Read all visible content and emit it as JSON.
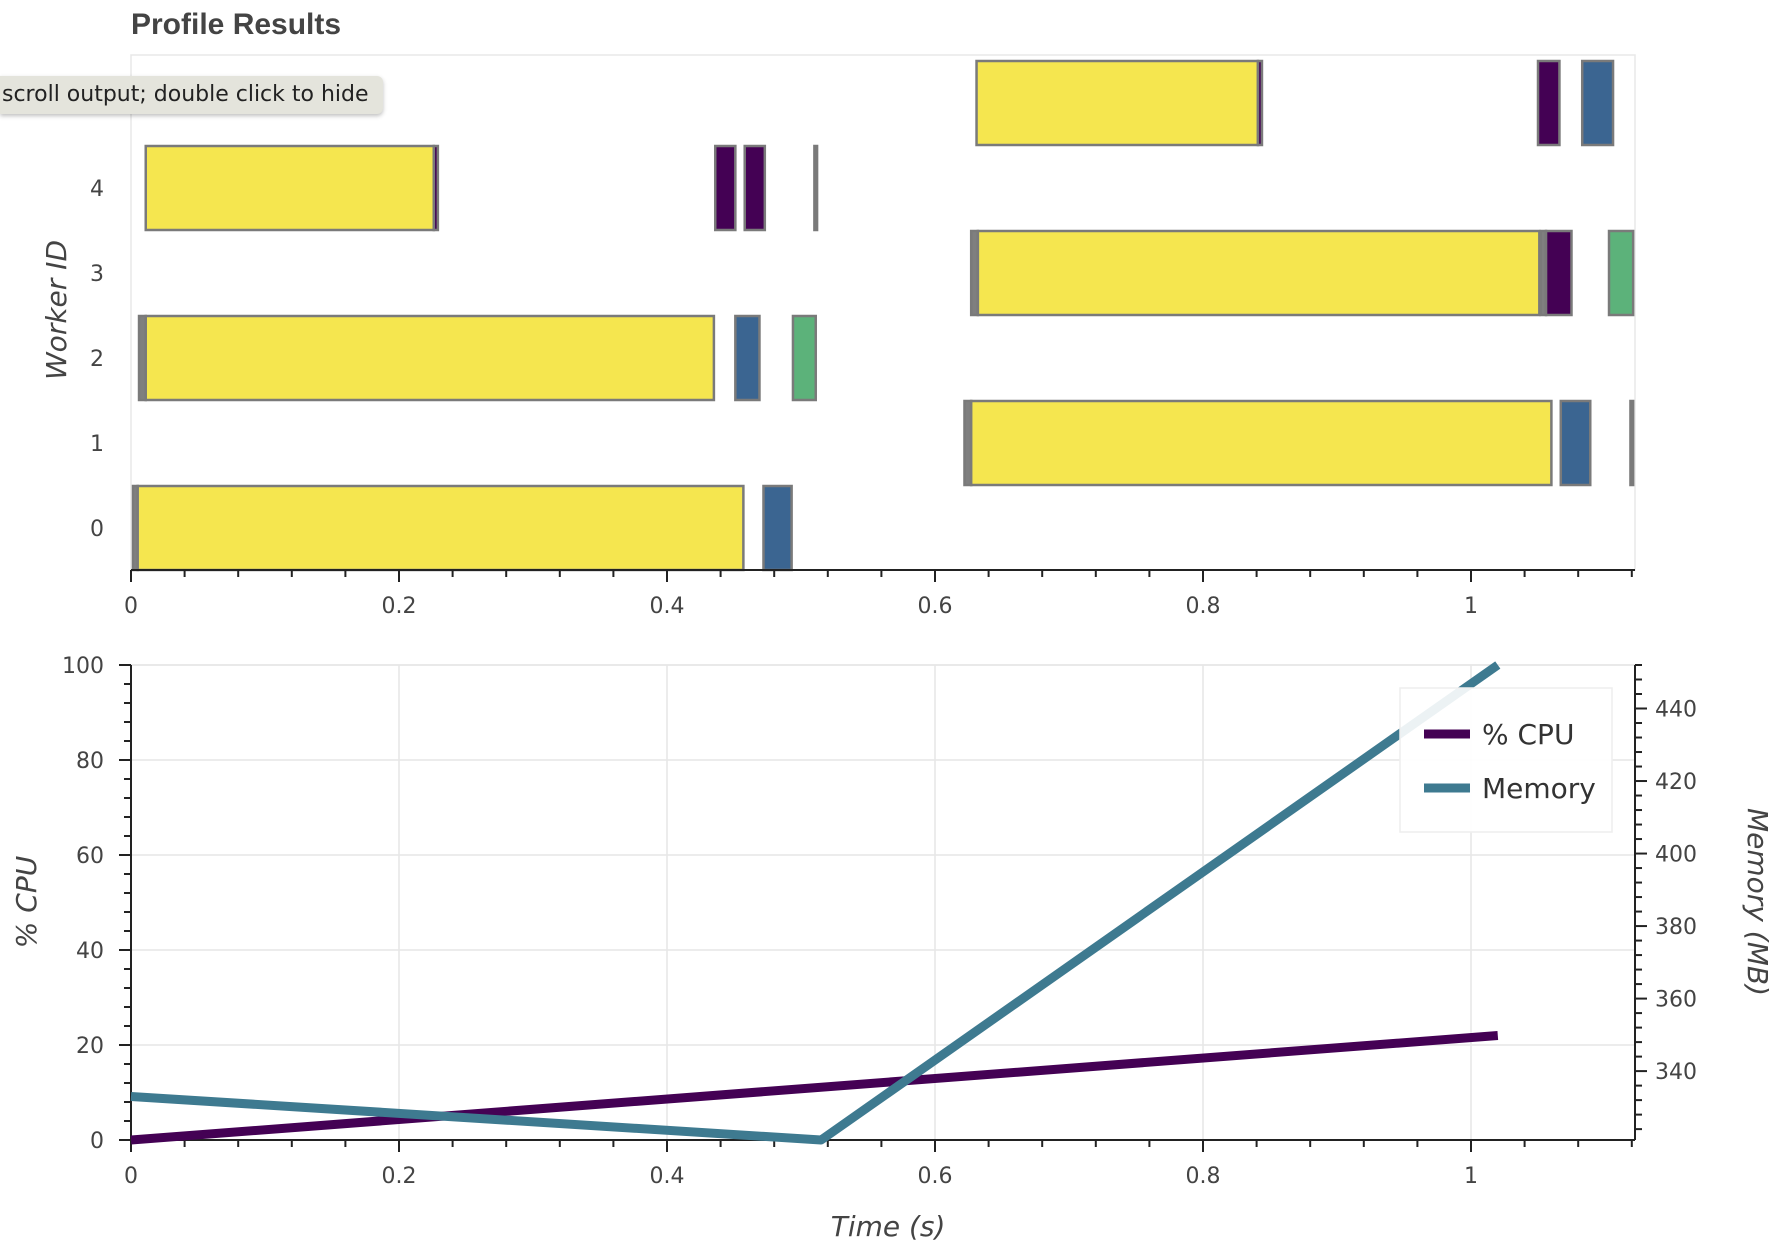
{
  "title": "Profile Results",
  "tooltip": "scroll output; double click to hide",
  "chart_data": [
    {
      "type": "bar",
      "subtype": "gantt",
      "ylabel": "Worker ID",
      "xlabel": "",
      "xlim": [
        0,
        1.12
      ],
      "ylim": [
        -0.5,
        5.5
      ],
      "xticks": [
        "0",
        "0.2",
        "0.4",
        "0.6",
        "0.8",
        "1"
      ],
      "yticks": [
        "0",
        "1",
        "2",
        "3",
        "4"
      ],
      "task_colors": {
        "yellow": "#f5e64f",
        "purple": "#440154",
        "blue": "#3b6591",
        "green": "#5cb27a",
        "gray": "#7f7f7f"
      },
      "tasks": [
        {
          "worker": 0,
          "start": 0.0,
          "end": 0.005,
          "color": "gray"
        },
        {
          "worker": 0,
          "start": 0.005,
          "end": 0.457,
          "color": "yellow"
        },
        {
          "worker": 0,
          "start": 0.472,
          "end": 0.493,
          "color": "blue"
        },
        {
          "worker": 1,
          "start": 0.622,
          "end": 0.627,
          "color": "gray"
        },
        {
          "worker": 1,
          "start": 0.627,
          "end": 1.06,
          "color": "yellow"
        },
        {
          "worker": 1,
          "start": 1.067,
          "end": 1.089,
          "color": "blue"
        },
        {
          "worker": 1,
          "start": 1.119,
          "end": 1.121,
          "color": "gray"
        },
        {
          "worker": 2,
          "start": 0.006,
          "end": 0.011,
          "color": "gray"
        },
        {
          "worker": 2,
          "start": 0.011,
          "end": 0.435,
          "color": "yellow"
        },
        {
          "worker": 2,
          "start": 0.451,
          "end": 0.469,
          "color": "blue"
        },
        {
          "worker": 2,
          "start": 0.494,
          "end": 0.511,
          "color": "green"
        },
        {
          "worker": 3,
          "start": 0.627,
          "end": 0.632,
          "color": "gray"
        },
        {
          "worker": 3,
          "start": 0.632,
          "end": 1.051,
          "color": "yellow"
        },
        {
          "worker": 3,
          "start": 1.052,
          "end": 1.056,
          "color": "gray"
        },
        {
          "worker": 3,
          "start": 1.056,
          "end": 1.075,
          "color": "purple"
        },
        {
          "worker": 3,
          "start": 1.103,
          "end": 1.121,
          "color": "green"
        },
        {
          "worker": 4,
          "start": 0.011,
          "end": 0.226,
          "color": "yellow"
        },
        {
          "worker": 4,
          "start": 0.226,
          "end": 0.229,
          "color": "purple"
        },
        {
          "worker": 4,
          "start": 0.436,
          "end": 0.451,
          "color": "purple"
        },
        {
          "worker": 4,
          "start": 0.458,
          "end": 0.473,
          "color": "purple"
        },
        {
          "worker": 4,
          "start": 0.51,
          "end": 0.512,
          "color": "gray"
        },
        {
          "worker": 5,
          "start": 0.631,
          "end": 0.841,
          "color": "yellow"
        },
        {
          "worker": 5,
          "start": 0.841,
          "end": 0.844,
          "color": "purple"
        },
        {
          "worker": 5,
          "start": 1.05,
          "end": 1.066,
          "color": "purple"
        },
        {
          "worker": 5,
          "start": 1.083,
          "end": 1.106,
          "color": "blue"
        }
      ]
    },
    {
      "type": "line",
      "xlabel": "Time (s)",
      "ylabel": "% CPU",
      "y2label": "Memory (MB)",
      "xlim": [
        0,
        1.12
      ],
      "ylim": [
        0,
        100
      ],
      "y2lim": [
        321,
        452
      ],
      "xticks": [
        "0",
        "0.2",
        "0.4",
        "0.6",
        "0.8",
        "1"
      ],
      "yticks": [
        "0",
        "20",
        "40",
        "60",
        "80",
        "100"
      ],
      "y2ticks": [
        "340",
        "360",
        "380",
        "400",
        "420",
        "440"
      ],
      "grid": true,
      "legend_position": "top-right",
      "series": [
        {
          "name": "% CPU",
          "axis": "left",
          "color": "#440154",
          "x": [
            0,
            1.02
          ],
          "y": [
            0,
            22
          ]
        },
        {
          "name": "Memory",
          "axis": "right",
          "color": "#3e7a90",
          "x": [
            0,
            0.515,
            1.02
          ],
          "y": [
            333,
            321,
            452
          ]
        }
      ]
    }
  ]
}
